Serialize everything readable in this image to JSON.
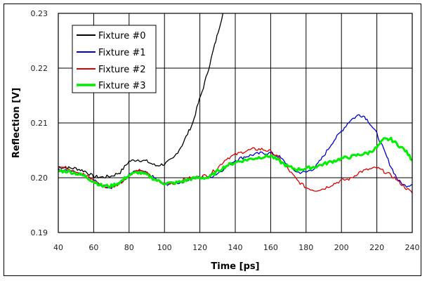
{
  "chart_data": {
    "type": "line",
    "title": "",
    "xlabel": "Time [ps]",
    "ylabel": "Reflection [V]",
    "xlim": [
      40,
      240
    ],
    "ylim": [
      0.19,
      0.23
    ],
    "xticks": [
      40,
      60,
      80,
      100,
      120,
      140,
      160,
      180,
      200,
      220,
      240
    ],
    "yticks": [
      0.19,
      0.2,
      0.21,
      0.22,
      0.23
    ],
    "ytick_labels": [
      "0.19",
      "0.20",
      "0.21",
      "0.22",
      "0.23"
    ],
    "grid": true,
    "legend_position": "upper-left",
    "series": [
      {
        "name": "Fixture #0",
        "color": "#000000",
        "width": 1.3,
        "x": [
          40,
          45,
          50,
          55,
          60,
          65,
          70,
          75,
          80,
          85,
          90,
          95,
          100,
          105,
          110,
          113,
          116,
          119,
          122,
          125,
          127,
          129,
          131,
          133,
          134
        ],
        "y": [
          0.202,
          0.2018,
          0.2017,
          0.2012,
          0.2002,
          0.2001,
          0.2003,
          0.201,
          0.203,
          0.2033,
          0.203,
          0.2022,
          0.2025,
          0.2035,
          0.206,
          0.208,
          0.21,
          0.2135,
          0.2165,
          0.22,
          0.2225,
          0.225,
          0.2275,
          0.23,
          0.232
        ]
      },
      {
        "name": "Fixture #1",
        "color": "#0000cc",
        "width": 1.3,
        "x": [
          40,
          45,
          50,
          55,
          60,
          65,
          70,
          75,
          80,
          85,
          90,
          95,
          100,
          105,
          110,
          115,
          120,
          125,
          130,
          135,
          140,
          145,
          150,
          155,
          160,
          165,
          170,
          175,
          180,
          185,
          190,
          195,
          200,
          205,
          210,
          213,
          216,
          220,
          224,
          228,
          232,
          236,
          240
        ],
        "y": [
          0.2015,
          0.2015,
          0.201,
          0.2005,
          0.1995,
          0.1985,
          0.1983,
          0.199,
          0.2005,
          0.2013,
          0.2008,
          0.1998,
          0.1988,
          0.199,
          0.1992,
          0.2,
          0.2,
          0.2,
          0.2008,
          0.202,
          0.2032,
          0.2038,
          0.2042,
          0.2045,
          0.2045,
          0.2038,
          0.2022,
          0.201,
          0.201,
          0.2018,
          0.204,
          0.2065,
          0.2085,
          0.2105,
          0.2115,
          0.2112,
          0.21,
          0.208,
          0.205,
          0.202,
          0.1995,
          0.1985,
          0.1988
        ]
      },
      {
        "name": "Fixture #2",
        "color": "#dd0000",
        "width": 1.3,
        "x": [
          40,
          45,
          50,
          55,
          60,
          65,
          70,
          75,
          80,
          85,
          90,
          95,
          100,
          105,
          110,
          115,
          120,
          125,
          130,
          135,
          140,
          145,
          150,
          155,
          160,
          165,
          170,
          175,
          180,
          185,
          190,
          195,
          200,
          205,
          210,
          215,
          220,
          225,
          230,
          235,
          240
        ],
        "y": [
          0.202,
          0.2018,
          0.2012,
          0.2005,
          0.1995,
          0.1985,
          0.1982,
          0.199,
          0.2005,
          0.2015,
          0.2008,
          0.1995,
          0.1988,
          0.199,
          0.1995,
          0.2,
          0.2002,
          0.2005,
          0.2018,
          0.2035,
          0.2042,
          0.2048,
          0.2052,
          0.2052,
          0.2048,
          0.2035,
          0.2015,
          0.1995,
          0.1982,
          0.1977,
          0.198,
          0.1988,
          0.1995,
          0.1998,
          0.201,
          0.2015,
          0.2018,
          0.201,
          0.2,
          0.1985,
          0.1972
        ]
      },
      {
        "name": "Fixture #3",
        "color": "#00ee00",
        "width": 3,
        "x": [
          40,
          45,
          50,
          55,
          60,
          65,
          70,
          75,
          80,
          85,
          90,
          95,
          100,
          105,
          110,
          115,
          120,
          125,
          130,
          135,
          140,
          145,
          150,
          155,
          160,
          165,
          170,
          175,
          180,
          185,
          190,
          195,
          200,
          205,
          210,
          215,
          220,
          224,
          228,
          232,
          236,
          240
        ],
        "y": [
          0.2012,
          0.2012,
          0.2008,
          0.2003,
          0.1993,
          0.1985,
          0.1985,
          0.1992,
          0.2005,
          0.201,
          0.2005,
          0.1996,
          0.199,
          0.199,
          0.1993,
          0.1998,
          0.2,
          0.2,
          0.2012,
          0.2022,
          0.2028,
          0.2032,
          0.2035,
          0.2038,
          0.204,
          0.203,
          0.202,
          0.2015,
          0.2017,
          0.202,
          0.2025,
          0.203,
          0.2035,
          0.2038,
          0.2042,
          0.2045,
          0.2055,
          0.207,
          0.207,
          0.206,
          0.205,
          0.2032
        ]
      }
    ]
  },
  "legend": {
    "items": [
      {
        "label": "Fixture #0",
        "color": "#000000"
      },
      {
        "label": "Fixture #1",
        "color": "#0000cc"
      },
      {
        "label": "Fixture #2",
        "color": "#dd0000"
      },
      {
        "label": "Fixture #3",
        "color": "#00ee00"
      }
    ]
  }
}
